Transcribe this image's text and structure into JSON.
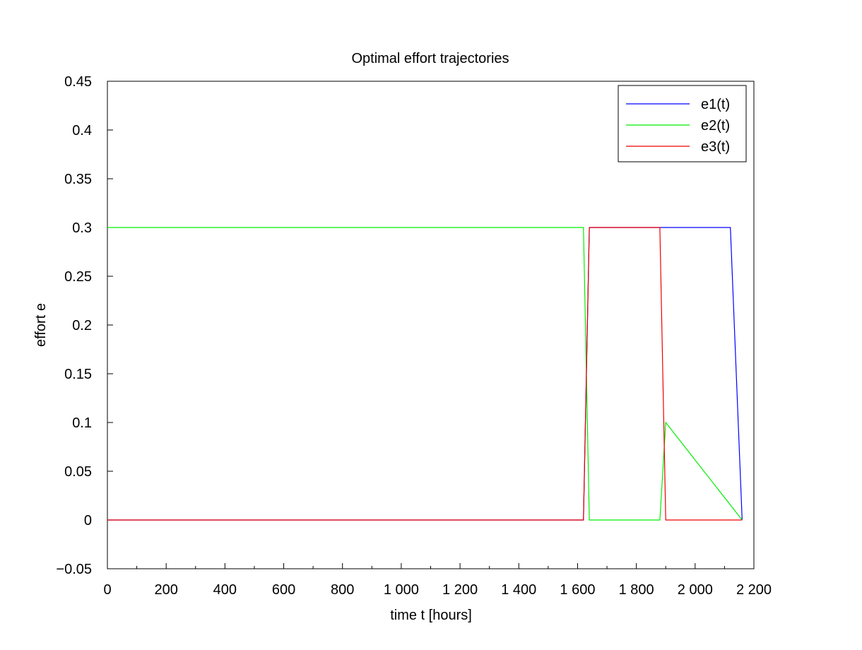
{
  "chart_data": {
    "type": "line",
    "title": "Optimal effort trajectories",
    "xlabel": "time t [hours]",
    "ylabel": "effort e",
    "xlim": [
      0,
      2200
    ],
    "ylim": [
      -0.05,
      0.45
    ],
    "x_ticks": [
      0,
      200,
      400,
      600,
      800,
      1000,
      1200,
      1400,
      1600,
      1800,
      2000,
      2200
    ],
    "x_tick_labels": [
      "0",
      "200",
      "400",
      "600",
      "800",
      "1 000",
      "1 200",
      "1 400",
      "1 600",
      "1 800",
      "2 000",
      "2 200"
    ],
    "y_ticks": [
      -0.05,
      0,
      0.05,
      0.1,
      0.15,
      0.2,
      0.25,
      0.3,
      0.35,
      0.4,
      0.45
    ],
    "y_tick_labels": [
      "−0.05",
      "0",
      "0.05",
      "0.1",
      "0.15",
      "0.2",
      "0.25",
      "0.3",
      "0.35",
      "0.4",
      "0.45"
    ],
    "grid": false,
    "legend_position": "top-right",
    "series": [
      {
        "name": "e1(t)",
        "color": "#0000ff",
        "x": [
          0,
          1620,
          1640,
          2120,
          2160
        ],
        "y": [
          0,
          0,
          0.3,
          0.3,
          0
        ]
      },
      {
        "name": "e2(t)",
        "color": "#00ee00",
        "x": [
          0,
          1620,
          1640,
          1880,
          1900,
          2160
        ],
        "y": [
          0.3,
          0.3,
          0,
          0,
          0.1,
          0
        ]
      },
      {
        "name": "e3(t)",
        "color": "#ee0000",
        "x": [
          0,
          1620,
          1640,
          1880,
          1900,
          2160
        ],
        "y": [
          0,
          0,
          0.3,
          0.3,
          0,
          0
        ]
      }
    ]
  }
}
